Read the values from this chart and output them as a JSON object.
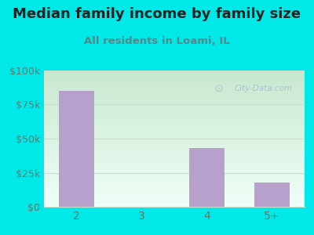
{
  "title": "Median family income by family size",
  "subtitle": "All residents in Loami, IL",
  "categories": [
    "2",
    "3",
    "4",
    "5+"
  ],
  "values": [
    85000,
    0,
    43000,
    18000
  ],
  "bar_color": "#b8a0cc",
  "outer_bg": "#00e8e8",
  "grad_top": "#c8e8d0",
  "grad_bottom": "#f0fff8",
  "title_color": "#222222",
  "subtitle_color": "#558888",
  "tick_color": "#667766",
  "grid_color": "#ccddcc",
  "ylim": [
    0,
    100000
  ],
  "yticks": [
    0,
    25000,
    50000,
    75000,
    100000
  ],
  "ytick_labels": [
    "$0",
    "$25k",
    "$50k",
    "$75k",
    "$100k"
  ],
  "watermark_text": "City-Data.com",
  "watermark_color": "#aabbcc",
  "title_fontsize": 13,
  "subtitle_fontsize": 9.5,
  "bar_width": 0.55
}
